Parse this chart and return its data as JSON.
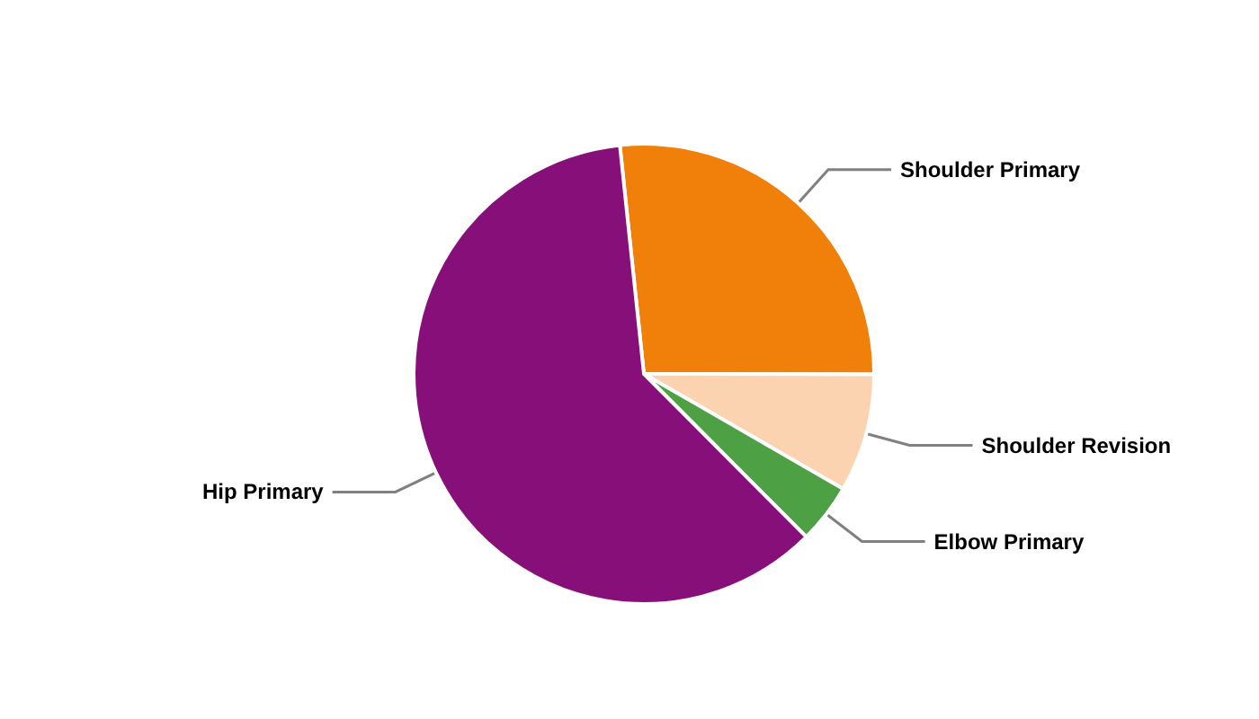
{
  "chart_data": {
    "type": "pie",
    "categories": [
      "Shoulder Primary",
      "Shoulder Revision",
      "Elbow Primary",
      "Hip Primary"
    ],
    "values": [
      26.7,
      8.3,
      4.2,
      60.8
    ],
    "colors": [
      "#f0800a",
      "#fcd3b0",
      "#4ea045",
      "#870f7a"
    ]
  }
}
